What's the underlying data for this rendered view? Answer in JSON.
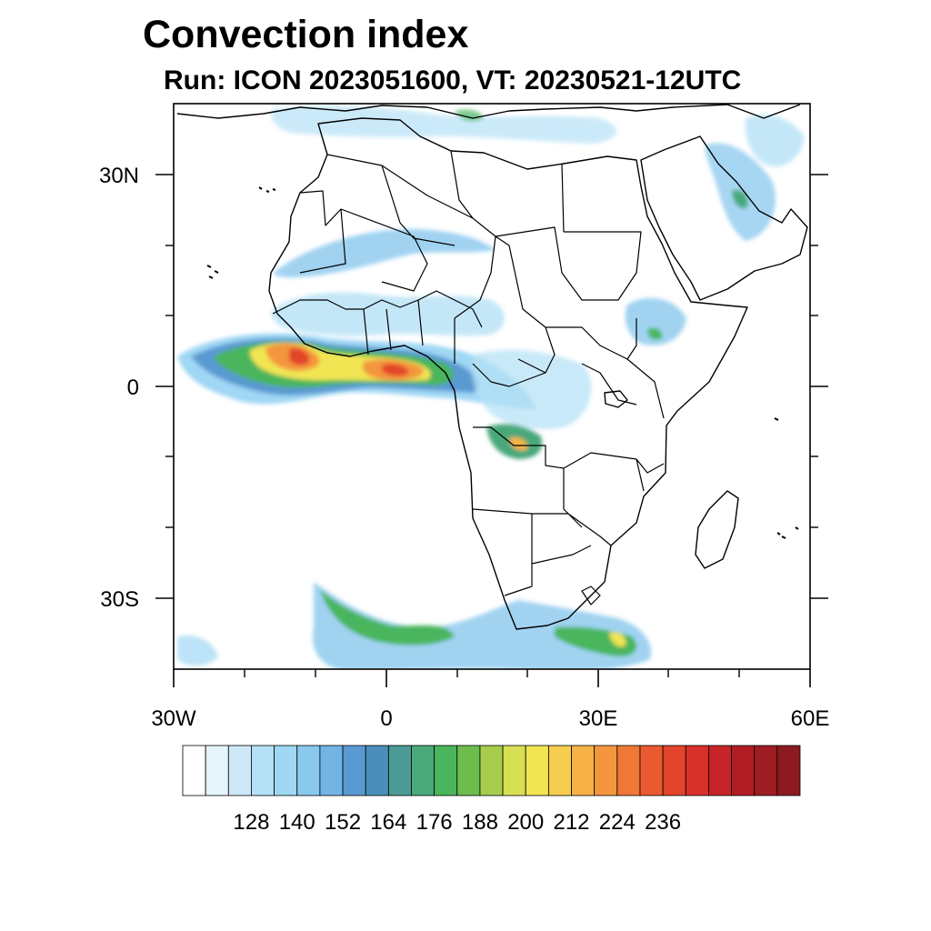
{
  "title": "Convection index",
  "subtitle": "Run: ICON 2023051600,  VT: 20230521-12UTC",
  "map": {
    "region": "Africa and surrounding Atlantic / Indian Ocean",
    "lon_range": [
      -30,
      60
    ],
    "lat_range": [
      -40,
      40
    ],
    "lon_ticks": [
      {
        "value": -30,
        "label": "30W"
      },
      {
        "value": 0,
        "label": "0"
      },
      {
        "value": 30,
        "label": "30E"
      },
      {
        "value": 60,
        "label": "60E"
      }
    ],
    "lat_ticks": [
      {
        "value": 30,
        "label": "30N"
      },
      {
        "value": 0,
        "label": "0"
      },
      {
        "value": -30,
        "label": "30S"
      }
    ]
  },
  "colorbar": {
    "colors": [
      "#ffffff",
      "#e6f4fc",
      "#cde9f8",
      "#b5e1f6",
      "#9fd7f4",
      "#8ac8ee",
      "#72b4e4",
      "#5a9ad2",
      "#4a8fb9",
      "#4a9a98",
      "#4aa87a",
      "#4ab55c",
      "#6cbd4c",
      "#a6cd4c",
      "#d8df52",
      "#f2e552",
      "#f7cd50",
      "#f6b246",
      "#f4963e",
      "#f07836",
      "#ea5a30",
      "#e2442c",
      "#d8302a",
      "#c62428",
      "#b21d24",
      "#9f1c22",
      "#8c1a1f"
    ],
    "tick_labels": [
      "128",
      "140",
      "152",
      "164",
      "176",
      "188",
      "200",
      "212",
      "224",
      "236"
    ]
  }
}
